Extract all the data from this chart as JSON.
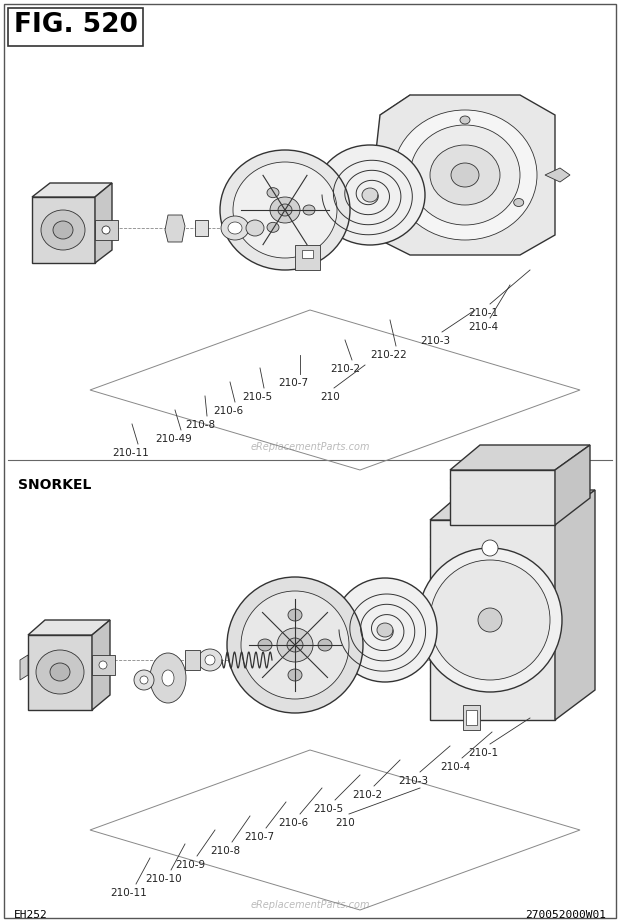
{
  "title": "FIG. 520",
  "footer_left": "EH252",
  "footer_right": "270052000W01",
  "watermark": "eReplacementParts.com",
  "snorkel_label": "SNORKEL",
  "bg_color": "#ffffff",
  "border_color": "#555555",
  "line_color": "#333333",
  "label_color": "#222222",
  "lw_main": 1.0,
  "lw_thin": 0.6
}
